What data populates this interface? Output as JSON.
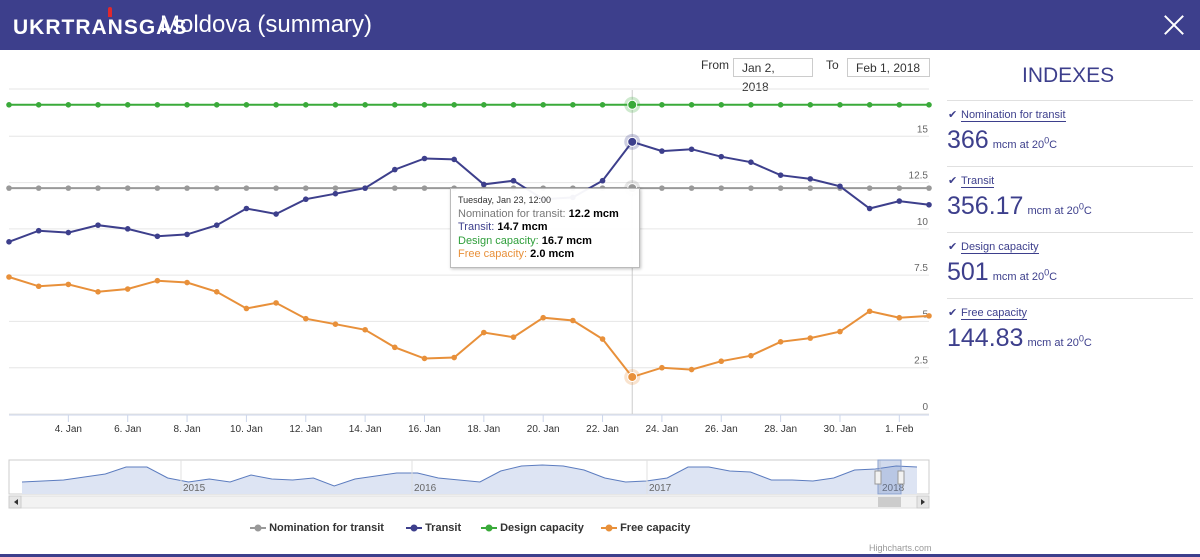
{
  "header": {
    "logo": "UKRTRANSGAS",
    "title": "Moldova (summary)"
  },
  "range": {
    "from_label": "From",
    "from_value": "Jan 2, 2018",
    "to_label": "To",
    "to_value": "Feb 1, 2018"
  },
  "tooltip": {
    "header": "Tuesday, Jan 23, 12:00",
    "rows": [
      {
        "label": "Nomination for transit",
        "value": "12.2 mcm",
        "color": "#777777"
      },
      {
        "label": "Transit",
        "value": "14.7 mcm",
        "color": "#3d3f8c"
      },
      {
        "label": "Design capacity",
        "value": "16.7 mcm",
        "color": "#2e9e3a"
      },
      {
        "label": "Free capacity",
        "value": "2.0 mcm",
        "color": "#e8903a"
      }
    ]
  },
  "legend": [
    {
      "name": "Nomination for transit",
      "color": "#999999"
    },
    {
      "name": "Transit",
      "color": "#3d3f8c"
    },
    {
      "name": "Design capacity",
      "color": "#3aaa3a"
    },
    {
      "name": "Free capacity",
      "color": "#e8903a"
    }
  ],
  "credits": "Highcharts.com",
  "indexes": {
    "title": "INDEXES",
    "items": [
      {
        "label": "Nomination for transit",
        "value": "366",
        "unit": "mcm at 20",
        "sup": "0",
        "unit_end": "C"
      },
      {
        "label": "Transit",
        "value": "356.17",
        "unit": "mcm at 20",
        "sup": "0",
        "unit_end": "C"
      },
      {
        "label": "Design capacity",
        "value": "501",
        "unit": "mcm at 20",
        "sup": "0",
        "unit_end": "C"
      },
      {
        "label": "Free capacity",
        "value": "144.83",
        "unit": "mcm at 20",
        "sup": "0",
        "unit_end": "C"
      }
    ]
  },
  "chart_data": {
    "type": "line",
    "x": [
      "2 Jan",
      "3 Jan",
      "4 Jan",
      "5 Jan",
      "6 Jan",
      "7 Jan",
      "8 Jan",
      "9 Jan",
      "10 Jan",
      "11 Jan",
      "12 Jan",
      "13 Jan",
      "14 Jan",
      "15 Jan",
      "16 Jan",
      "17 Jan",
      "18 Jan",
      "19 Jan",
      "20 Jan",
      "21 Jan",
      "22 Jan",
      "23 Jan",
      "24 Jan",
      "25 Jan",
      "26 Jan",
      "27 Jan",
      "28 Jan",
      "29 Jan",
      "30 Jan",
      "31 Jan",
      "1 Feb",
      "2 Feb"
    ],
    "xticks": [
      "4. Jan",
      "6. Jan",
      "8. Jan",
      "10. Jan",
      "12. Jan",
      "14. Jan",
      "16. Jan",
      "18. Jan",
      "20. Jan",
      "22. Jan",
      "24. Jan",
      "26. Jan",
      "28. Jan",
      "30. Jan",
      "1. Feb"
    ],
    "yticks": [
      "0",
      "2.5",
      "5",
      "7.5",
      "10",
      "12.5",
      "15"
    ],
    "ylim": [
      0,
      17.5
    ],
    "highlight_index": 21,
    "series": [
      {
        "name": "Nomination for transit",
        "color": "#999999",
        "values": [
          12.2,
          12.2,
          12.2,
          12.2,
          12.2,
          12.2,
          12.2,
          12.2,
          12.2,
          12.2,
          12.2,
          12.2,
          12.2,
          12.2,
          12.2,
          12.2,
          12.2,
          12.2,
          12.2,
          12.2,
          12.2,
          12.2,
          12.2,
          12.2,
          12.2,
          12.2,
          12.2,
          12.2,
          12.2,
          12.2,
          12.2,
          12.2
        ]
      },
      {
        "name": "Transit",
        "color": "#3d3f8c",
        "values": [
          9.3,
          9.9,
          9.8,
          10.2,
          10.0,
          9.6,
          9.7,
          10.2,
          11.1,
          10.8,
          11.6,
          11.9,
          12.2,
          13.2,
          13.8,
          13.75,
          12.4,
          12.6,
          11.6,
          11.7,
          12.6,
          14.7,
          14.2,
          14.3,
          13.9,
          13.6,
          12.9,
          12.7,
          12.3,
          11.1,
          11.5,
          11.3
        ]
      },
      {
        "name": "Design capacity",
        "color": "#3aaa3a",
        "values": [
          16.7,
          16.7,
          16.7,
          16.7,
          16.7,
          16.7,
          16.7,
          16.7,
          16.7,
          16.7,
          16.7,
          16.7,
          16.7,
          16.7,
          16.7,
          16.7,
          16.7,
          16.7,
          16.7,
          16.7,
          16.7,
          16.7,
          16.7,
          16.7,
          16.7,
          16.7,
          16.7,
          16.7,
          16.7,
          16.7,
          16.7,
          16.7
        ]
      },
      {
        "name": "Free capacity",
        "color": "#e8903a",
        "values": [
          7.4,
          6.9,
          7.0,
          6.6,
          6.75,
          7.2,
          7.1,
          6.6,
          5.7,
          6.0,
          5.15,
          4.85,
          4.55,
          3.6,
          3.0,
          3.05,
          4.4,
          4.15,
          5.2,
          5.05,
          4.05,
          2.0,
          2.5,
          2.4,
          2.85,
          3.15,
          3.9,
          4.1,
          4.45,
          5.55,
          5.2,
          5.3
        ]
      }
    ],
    "navigator": {
      "labels": [
        "2015",
        "2016",
        "2017",
        "2018"
      ]
    }
  }
}
